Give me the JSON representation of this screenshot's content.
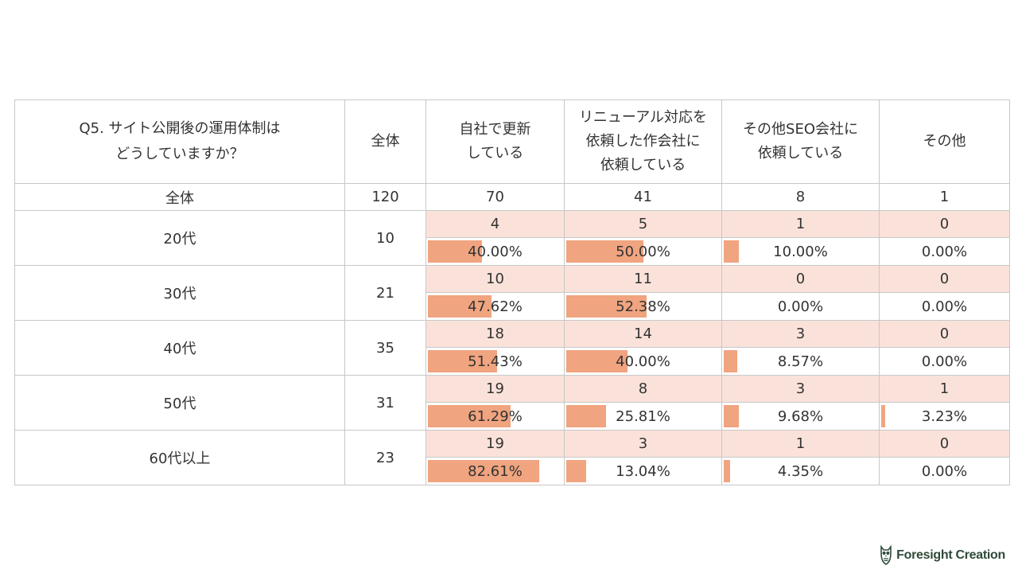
{
  "chart_data": {
    "type": "table",
    "question": [
      "Q5. サイト公開後の運用体制は",
      "どうしていますか？"
    ],
    "total_label": "全体",
    "columns": [
      {
        "label": [
          "自社で更新",
          "している"
        ]
      },
      {
        "label": [
          "リニューアル対応を",
          "依頼した作会社に",
          "依頼している"
        ]
      },
      {
        "label": [
          "その他SEO会社に",
          "依頼している"
        ]
      },
      {
        "label": [
          "その他"
        ]
      }
    ],
    "overall": {
      "label": "全体",
      "total": "120",
      "counts": [
        "70",
        "41",
        "8",
        "1"
      ]
    },
    "rows": [
      {
        "label": "20代",
        "total": "10",
        "counts": [
          "4",
          "5",
          "1",
          "0"
        ],
        "percents": [
          "40.00%",
          "50.00%",
          "10.00%",
          "0.00%"
        ],
        "values": [
          40.0,
          50.0,
          10.0,
          0.0
        ]
      },
      {
        "label": "30代",
        "total": "21",
        "counts": [
          "10",
          "11",
          "0",
          "0"
        ],
        "percents": [
          "47.62%",
          "52.38%",
          "0.00%",
          "0.00%"
        ],
        "values": [
          47.62,
          52.38,
          0.0,
          0.0
        ]
      },
      {
        "label": "40代",
        "total": "35",
        "counts": [
          "18",
          "14",
          "3",
          "0"
        ],
        "percents": [
          "51.43%",
          "40.00%",
          "8.57%",
          "0.00%"
        ],
        "values": [
          51.43,
          40.0,
          8.57,
          0.0
        ]
      },
      {
        "label": "50代",
        "total": "31",
        "counts": [
          "19",
          "8",
          "3",
          "1"
        ],
        "percents": [
          "61.29%",
          "25.81%",
          "9.68%",
          "3.23%"
        ],
        "values": [
          61.29,
          25.81,
          9.68,
          3.23
        ]
      },
      {
        "label": "60代以上",
        "total": "23",
        "counts": [
          "19",
          "3",
          "1",
          "0"
        ],
        "percents": [
          "82.61%",
          "13.04%",
          "4.35%",
          "0.00%"
        ],
        "values": [
          82.61,
          13.04,
          4.35,
          0.0
        ]
      }
    ],
    "bar_scale_max": 100,
    "bar_color": "#f0a47f",
    "count_fill_color": "#fae2da"
  },
  "branding": {
    "logo_text": "Foresight Creation",
    "logo_icon": "owl-icon"
  }
}
